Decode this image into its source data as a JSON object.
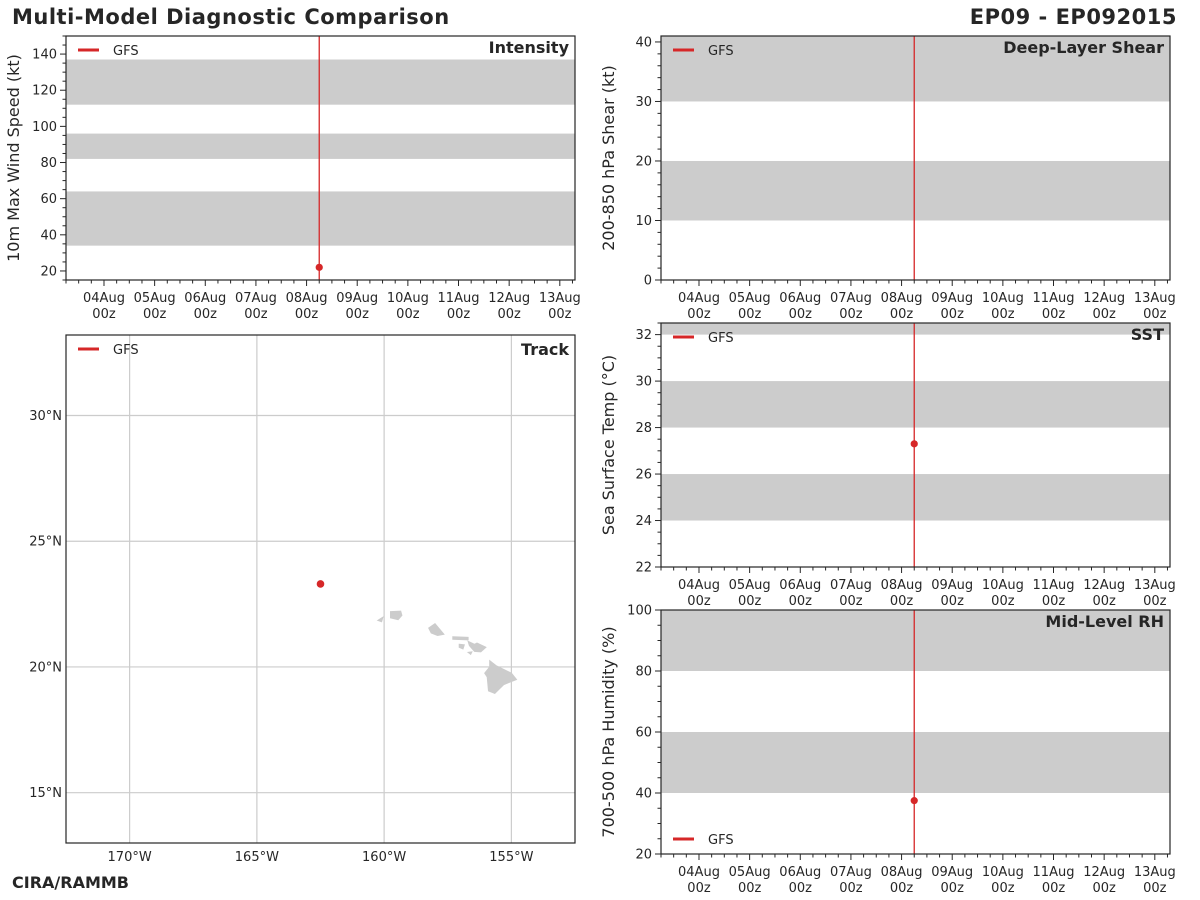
{
  "header": {
    "title": "Multi-Model Diagnostic Comparison",
    "storm_id": "EP09 - EP092015"
  },
  "footer": {
    "credit": "CIRA/RAMMB"
  },
  "colors": {
    "gfs": "#d62728",
    "band": "#cccccc",
    "grid": "#cccccc",
    "land": "#cccccc",
    "axis": "#262626"
  },
  "chart_data": [
    {
      "id": "intensity",
      "type": "scatter",
      "title": "Intensity",
      "ylabel": "10m Max Wind Speed (kt)",
      "ylim": [
        15,
        150
      ],
      "yticks": [
        20,
        40,
        60,
        80,
        100,
        120,
        140
      ],
      "yminor_step": 5,
      "xlim_days": [
        -0.75,
        9.3
      ],
      "xticks": [
        "04Aug\n00z",
        "05Aug\n00z",
        "06Aug\n00z",
        "07Aug\n00z",
        "08Aug\n00z",
        "09Aug\n00z",
        "10Aug\n00z",
        "11Aug\n00z",
        "12Aug\n00z",
        "13Aug\n00z"
      ],
      "bands": [
        [
          34,
          64
        ],
        [
          82,
          96
        ],
        [
          112,
          137
        ]
      ],
      "vline_day": 4.25,
      "legend": {
        "label": "GFS",
        "position": "top-left"
      },
      "series": [
        {
          "name": "GFS",
          "points": [
            [
              4.25,
              22
            ]
          ]
        }
      ]
    },
    {
      "id": "shear",
      "type": "line",
      "title": "Deep-Layer Shear",
      "ylabel": "200-850 hPa Shear (kt)",
      "ylim": [
        0,
        41
      ],
      "yticks": [
        0,
        10,
        20,
        30,
        40
      ],
      "yminor_step": 2,
      "xlim_days": [
        -0.75,
        9.3
      ],
      "xticks": [
        "04Aug\n00z",
        "05Aug\n00z",
        "06Aug\n00z",
        "07Aug\n00z",
        "08Aug\n00z",
        "09Aug\n00z",
        "10Aug\n00z",
        "11Aug\n00z",
        "12Aug\n00z",
        "13Aug\n00z"
      ],
      "bands": [
        [
          10,
          20
        ],
        [
          30,
          41
        ]
      ],
      "vline_day": 4.25,
      "legend": {
        "label": "GFS",
        "position": "top-left"
      },
      "series": [
        {
          "name": "GFS",
          "points": []
        }
      ]
    },
    {
      "id": "sst",
      "type": "scatter",
      "title": "SST",
      "ylabel": "Sea Surface Temp (°C)",
      "ylim": [
        22,
        32.5
      ],
      "yticks": [
        22,
        24,
        26,
        28,
        30,
        32
      ],
      "yminor_step": 0.5,
      "xlim_days": [
        -0.75,
        9.3
      ],
      "xticks": [
        "04Aug\n00z",
        "05Aug\n00z",
        "06Aug\n00z",
        "07Aug\n00z",
        "08Aug\n00z",
        "09Aug\n00z",
        "10Aug\n00z",
        "11Aug\n00z",
        "12Aug\n00z",
        "13Aug\n00z"
      ],
      "bands": [
        [
          24,
          26
        ],
        [
          28,
          30
        ],
        [
          32,
          32.5
        ]
      ],
      "vline_day": 4.25,
      "legend": {
        "label": "GFS",
        "position": "top-left"
      },
      "series": [
        {
          "name": "GFS",
          "points": [
            [
              4.25,
              27.3
            ]
          ]
        }
      ]
    },
    {
      "id": "rh",
      "type": "scatter",
      "title": "Mid-Level RH",
      "ylabel": "700-500 hPa Humidity (%)",
      "ylim": [
        20,
        100
      ],
      "yticks": [
        20,
        40,
        60,
        80,
        100
      ],
      "yminor_step": 5,
      "xlim_days": [
        -0.75,
        9.3
      ],
      "xticks": [
        "04Aug\n00z",
        "05Aug\n00z",
        "06Aug\n00z",
        "07Aug\n00z",
        "08Aug\n00z",
        "09Aug\n00z",
        "10Aug\n00z",
        "11Aug\n00z",
        "12Aug\n00z",
        "13Aug\n00z"
      ],
      "bands": [
        [
          40,
          60
        ],
        [
          80,
          100
        ]
      ],
      "vline_day": 4.25,
      "legend": {
        "label": "GFS",
        "position": "bottom-left"
      },
      "series": [
        {
          "name": "GFS",
          "points": [
            [
              4.25,
              37.5
            ]
          ]
        }
      ]
    },
    {
      "id": "track",
      "type": "scatter",
      "title": "Track",
      "lon_range": [
        -172.5,
        -152.5
      ],
      "lat_range": [
        13,
        33.2
      ],
      "xticks": [
        {
          "value": -170,
          "label": "170°W"
        },
        {
          "value": -165,
          "label": "165°W"
        },
        {
          "value": -160,
          "label": "160°W"
        },
        {
          "value": -155,
          "label": "155°W"
        }
      ],
      "yticks": [
        {
          "value": 15,
          "label": "15°N"
        },
        {
          "value": 20,
          "label": "20°N"
        },
        {
          "value": 25,
          "label": "25°N"
        },
        {
          "value": 30,
          "label": "30°N"
        }
      ],
      "legend": {
        "label": "GFS",
        "position": "top-left"
      },
      "series": [
        {
          "name": "GFS",
          "points": [
            [
              -162.5,
              23.3
            ]
          ]
        }
      ],
      "land": [
        {
          "name": "niihau",
          "coords": [
            [
              -160.25,
              21.85
            ],
            [
              -160.05,
              21.98
            ],
            [
              -160.1,
              21.8
            ]
          ]
        },
        {
          "name": "kauai",
          "coords": [
            [
              -159.75,
              22.2
            ],
            [
              -159.35,
              22.22
            ],
            [
              -159.3,
              22.05
            ],
            [
              -159.45,
              21.88
            ],
            [
              -159.75,
              21.95
            ]
          ]
        },
        {
          "name": "oahu",
          "coords": [
            [
              -158.25,
              21.55
            ],
            [
              -158.0,
              21.72
            ],
            [
              -157.65,
              21.3
            ],
            [
              -157.9,
              21.25
            ],
            [
              -158.15,
              21.35
            ]
          ]
        },
        {
          "name": "molokai",
          "coords": [
            [
              -157.3,
              21.2
            ],
            [
              -156.7,
              21.18
            ],
            [
              -156.7,
              21.08
            ],
            [
              -157.3,
              21.1
            ]
          ]
        },
        {
          "name": "lanai",
          "coords": [
            [
              -157.05,
              20.9
            ],
            [
              -156.85,
              20.88
            ],
            [
              -156.9,
              20.72
            ],
            [
              -157.05,
              20.78
            ]
          ]
        },
        {
          "name": "maui",
          "coords": [
            [
              -156.7,
              21.02
            ],
            [
              -156.45,
              20.9
            ],
            [
              -156.35,
              20.95
            ],
            [
              -156.0,
              20.78
            ],
            [
              -156.2,
              20.6
            ],
            [
              -156.45,
              20.62
            ],
            [
              -156.65,
              20.85
            ]
          ]
        },
        {
          "name": "kahoolawe",
          "coords": [
            [
              -156.7,
              20.58
            ],
            [
              -156.55,
              20.6
            ],
            [
              -156.6,
              20.5
            ]
          ]
        },
        {
          "name": "hawaii",
          "coords": [
            [
              -155.85,
              20.25
            ],
            [
              -155.6,
              20.05
            ],
            [
              -155.0,
              19.75
            ],
            [
              -154.8,
              19.5
            ],
            [
              -155.3,
              19.3
            ],
            [
              -155.65,
              18.95
            ],
            [
              -155.9,
              19.05
            ],
            [
              -155.95,
              19.6
            ],
            [
              -156.05,
              19.75
            ],
            [
              -155.85,
              20.0
            ]
          ]
        }
      ]
    }
  ]
}
